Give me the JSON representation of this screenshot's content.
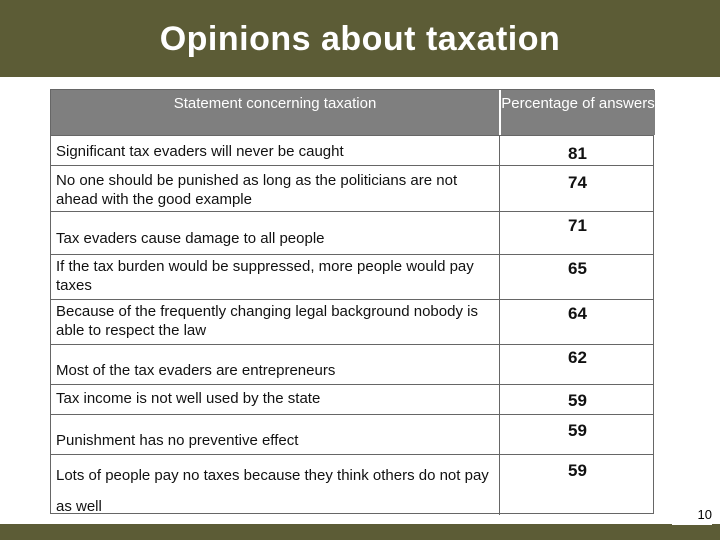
{
  "title": "Opinions about taxation",
  "page_number": "10",
  "table": {
    "header_statement": "Statement concerning taxation",
    "header_percentage": "Percentage of answers",
    "rows": [
      {
        "statement": "Significant tax evaders will never be caught",
        "percentage": "81"
      },
      {
        "statement": "No one should be punished as long as the politicians are not ahead with the good example",
        "percentage": "74"
      },
      {
        "statement": "Tax evaders cause damage to all people",
        "percentage": "71"
      },
      {
        "statement": "If the tax burden would be suppressed, more people would pay taxes",
        "percentage": "65"
      },
      {
        "statement": "Because of the frequently changing legal background nobody is able to respect the law",
        "percentage": "64"
      },
      {
        "statement": "Most of the tax evaders are entrepreneurs",
        "percentage": "62"
      },
      {
        "statement": "Tax income is not well used by the state",
        "percentage": "59"
      },
      {
        "statement": "Punishment has no preventive effect",
        "percentage": "59"
      },
      {
        "statement": "Lots of people pay no taxes because they think others do not pay as well",
        "percentage": "59"
      }
    ]
  }
}
